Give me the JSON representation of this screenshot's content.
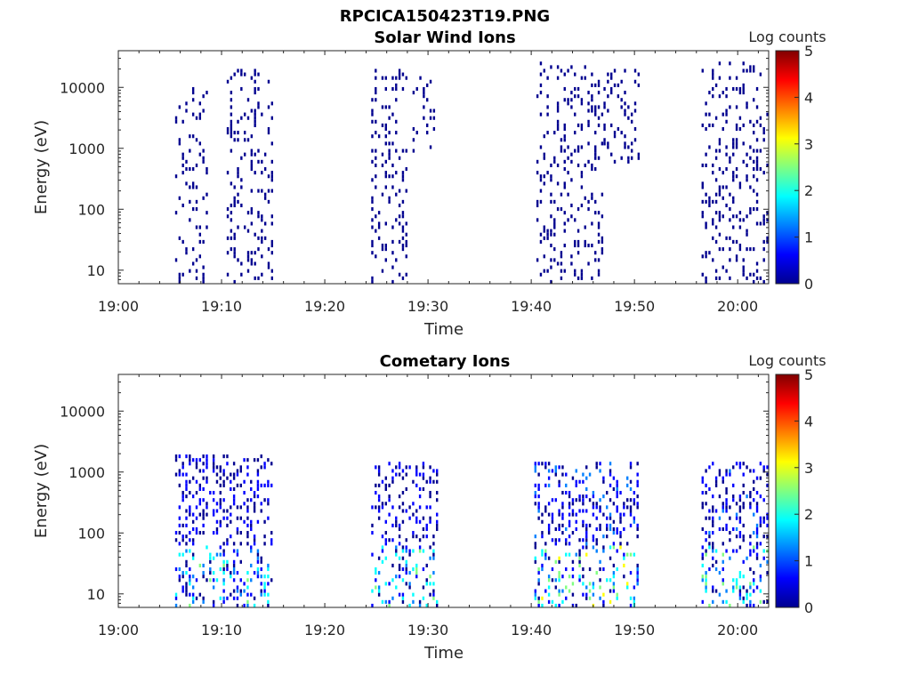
{
  "figure_title": "RPCICA150423T19.PNG",
  "colormap": [
    "#00008f",
    "#0000ff",
    "#0080ff",
    "#00ffff",
    "#80ff80",
    "#ffff00",
    "#ff8000",
    "#ff0000",
    "#800000"
  ],
  "chart_data": [
    {
      "type": "heatmap",
      "title": "Solar Wind Ions",
      "xlabel": "Time",
      "ylabel": "Energy (eV)",
      "x_ticks": [
        "19:00",
        "19:10",
        "19:20",
        "19:30",
        "19:40",
        "19:50",
        "20:00"
      ],
      "y_ticks": [
        "10",
        "100",
        "1000",
        "10000"
      ],
      "y_scale": "log",
      "ylim": [
        6,
        40000
      ],
      "xlim_minutes": [
        0,
        63
      ],
      "colorbar_label": "Log counts",
      "colorbar_ticks": [
        "0",
        "1",
        "2",
        "3",
        "4",
        "5"
      ],
      "clim": [
        0,
        5
      ],
      "bursts": [
        {
          "start": 5.5,
          "end": 8.5,
          "emin": 6,
          "emax": 10000,
          "level": 0.4
        },
        {
          "start": 10.5,
          "end": 15.0,
          "emin": 6,
          "emax": 20000,
          "level": 0.4
        },
        {
          "start": 24.5,
          "end": 27.8,
          "emin": 6,
          "emax": 20000,
          "level": 0.4
        },
        {
          "start": 28.5,
          "end": 30.8,
          "emin": 800,
          "emax": 15000,
          "level": 0.3
        },
        {
          "start": 40.5,
          "end": 47.0,
          "emin": 6,
          "emax": 25000,
          "level": 0.35
        },
        {
          "start": 47.0,
          "end": 50.3,
          "emin": 600,
          "emax": 20000,
          "level": 0.3
        },
        {
          "start": 56.5,
          "end": 63.0,
          "emin": 6,
          "emax": 25000,
          "level": 0.4
        }
      ]
    },
    {
      "type": "heatmap",
      "title": "Cometary Ions",
      "xlabel": "Time",
      "ylabel": "Energy (eV)",
      "x_ticks": [
        "19:00",
        "19:10",
        "19:20",
        "19:30",
        "19:40",
        "19:50",
        "20:00"
      ],
      "y_ticks": [
        "10",
        "100",
        "1000",
        "10000"
      ],
      "y_scale": "log",
      "ylim": [
        6,
        40000
      ],
      "xlim_minutes": [
        0,
        63
      ],
      "colorbar_label": "Log counts",
      "colorbar_ticks": [
        "0",
        "1",
        "2",
        "3",
        "4",
        "5"
      ],
      "clim": [
        0,
        5
      ],
      "bursts": [
        {
          "start": 5.5,
          "end": 15.0,
          "emin": 6,
          "emax": 2000,
          "level": 0.9
        },
        {
          "start": 24.5,
          "end": 30.8,
          "emin": 6,
          "emax": 1500,
          "level": 0.9
        },
        {
          "start": 40.3,
          "end": 50.3,
          "emin": 6,
          "emax": 1500,
          "level": 1.1
        },
        {
          "start": 56.5,
          "end": 63.0,
          "emin": 6,
          "emax": 1500,
          "level": 1.0
        }
      ]
    }
  ]
}
